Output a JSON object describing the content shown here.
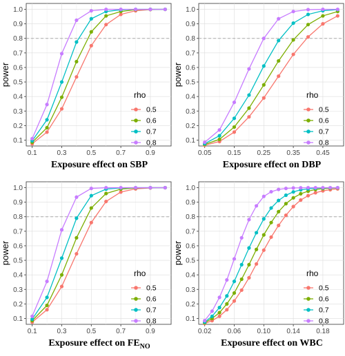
{
  "chart_data": [
    {
      "type": "line",
      "xlabel": "Exposure effect on SBP",
      "xlabel_sub": "",
      "ylabel": "power",
      "x": [
        0.1,
        0.2,
        0.3,
        0.4,
        0.5,
        0.6,
        0.7,
        0.8,
        0.9,
        1.0
      ],
      "xlim": [
        0.1,
        1.0
      ],
      "xticks": [
        0.1,
        0.3,
        0.5,
        0.7,
        0.9
      ],
      "xtick_labels": [
        "0.1",
        "0.3",
        "0.5",
        "0.7",
        "0.9"
      ],
      "ylim": [
        0.1,
        1.0
      ],
      "yticks": [
        0.1,
        0.2,
        0.3,
        0.4,
        0.5,
        0.6,
        0.7,
        0.8,
        0.9,
        1.0
      ],
      "ytick_labels": [
        "0.1",
        "0.2",
        "0.3",
        "0.4",
        "0.5",
        "0.6",
        "0.7",
        "0.8",
        "0.9",
        "1.0"
      ],
      "reference_line": 0.8,
      "legend_title": "rho",
      "legend_position": "right",
      "grid": true,
      "series": [
        {
          "name": "0.5",
          "color": "#F8766D",
          "values": [
            0.075,
            0.155,
            0.315,
            0.535,
            0.75,
            0.895,
            0.965,
            0.99,
            0.998,
            1.0
          ]
        },
        {
          "name": "0.6",
          "color": "#7CAE00",
          "values": [
            0.085,
            0.185,
            0.395,
            0.64,
            0.845,
            0.955,
            0.985,
            0.998,
            1.0,
            1.0
          ]
        },
        {
          "name": "0.7",
          "color": "#00BFC4",
          "values": [
            0.095,
            0.24,
            0.5,
            0.775,
            0.935,
            0.985,
            0.997,
            1.0,
            1.0,
            1.0
          ]
        },
        {
          "name": "0.8",
          "color": "#C77CFF",
          "values": [
            0.11,
            0.345,
            0.695,
            0.925,
            0.99,
            1.0,
            1.0,
            1.0,
            1.0,
            1.0
          ]
        }
      ]
    },
    {
      "type": "line",
      "xlabel": "Exposure effect on DBP",
      "xlabel_sub": "",
      "ylabel": "power",
      "x": [
        0.05,
        0.1,
        0.15,
        0.2,
        0.25,
        0.3,
        0.35,
        0.4,
        0.45,
        0.5
      ],
      "xlim": [
        0.05,
        0.5
      ],
      "xticks": [
        0.05,
        0.15,
        0.25,
        0.35,
        0.45
      ],
      "xtick_labels": [
        "0.05",
        "0.15",
        "0.25",
        "0.35",
        "0.45"
      ],
      "ylim": [
        0.1,
        1.0
      ],
      "yticks": [
        0.1,
        0.2,
        0.3,
        0.4,
        0.5,
        0.6,
        0.7,
        0.8,
        0.9,
        1.0
      ],
      "ytick_labels": [
        "0.1",
        "0.2",
        "0.3",
        "0.4",
        "0.5",
        "0.6",
        "0.7",
        "0.8",
        "0.9",
        "1.0"
      ],
      "reference_line": 0.8,
      "legend_title": "rho",
      "legend_position": "right",
      "grid": true,
      "series": [
        {
          "name": "0.5",
          "color": "#F8766D",
          "values": [
            0.065,
            0.09,
            0.155,
            0.26,
            0.39,
            0.54,
            0.69,
            0.81,
            0.9,
            0.955
          ]
        },
        {
          "name": "0.6",
          "color": "#7CAE00",
          "values": [
            0.07,
            0.105,
            0.19,
            0.32,
            0.48,
            0.645,
            0.79,
            0.895,
            0.955,
            0.985
          ]
        },
        {
          "name": "0.7",
          "color": "#00BFC4",
          "values": [
            0.075,
            0.13,
            0.25,
            0.41,
            0.61,
            0.785,
            0.905,
            0.965,
            0.99,
            0.998
          ]
        },
        {
          "name": "0.8",
          "color": "#C77CFF",
          "values": [
            0.085,
            0.17,
            0.36,
            0.59,
            0.8,
            0.935,
            0.985,
            0.998,
            1.0,
            1.0
          ]
        }
      ]
    },
    {
      "type": "line",
      "xlabel": "Exposure effect on FE",
      "xlabel_sub": "NO",
      "ylabel": "power",
      "x": [
        0.1,
        0.2,
        0.3,
        0.4,
        0.5,
        0.6,
        0.7,
        0.8,
        0.9,
        1.0
      ],
      "xlim": [
        0.1,
        1.0
      ],
      "xticks": [
        0.1,
        0.3,
        0.5,
        0.7,
        0.9
      ],
      "xtick_labels": [
        "0.1",
        "0.3",
        "0.5",
        "0.7",
        "0.9"
      ],
      "ylim": [
        0.1,
        1.0
      ],
      "yticks": [
        0.1,
        0.2,
        0.3,
        0.4,
        0.5,
        0.6,
        0.7,
        0.8,
        0.9,
        1.0
      ],
      "ytick_labels": [
        "0.1",
        "0.2",
        "0.3",
        "0.4",
        "0.5",
        "0.6",
        "0.7",
        "0.8",
        "0.9",
        "1.0"
      ],
      "reference_line": 0.8,
      "legend_title": "rho",
      "legend_position": "right",
      "grid": true,
      "series": [
        {
          "name": "0.5",
          "color": "#F8766D",
          "values": [
            0.075,
            0.16,
            0.32,
            0.545,
            0.76,
            0.905,
            0.97,
            0.992,
            0.998,
            1.0
          ]
        },
        {
          "name": "0.6",
          "color": "#7CAE00",
          "values": [
            0.085,
            0.19,
            0.4,
            0.655,
            0.86,
            0.96,
            0.99,
            0.998,
            1.0,
            1.0
          ]
        },
        {
          "name": "0.7",
          "color": "#00BFC4",
          "values": [
            0.095,
            0.245,
            0.515,
            0.79,
            0.945,
            0.99,
            0.998,
            1.0,
            1.0,
            1.0
          ]
        },
        {
          "name": "0.8",
          "color": "#C77CFF",
          "values": [
            0.115,
            0.355,
            0.71,
            0.935,
            0.995,
            1.0,
            1.0,
            1.0,
            1.0,
            1.0
          ]
        }
      ]
    },
    {
      "type": "line",
      "xlabel": "Exposure effect on WBC",
      "xlabel_sub": "",
      "ylabel": "power",
      "x": [
        0.02,
        0.03,
        0.04,
        0.05,
        0.06,
        0.07,
        0.08,
        0.09,
        0.1,
        0.11,
        0.12,
        0.13,
        0.14,
        0.15,
        0.16,
        0.17,
        0.18,
        0.19,
        0.2
      ],
      "xlim": [
        0.02,
        0.2
      ],
      "xticks": [
        0.02,
        0.06,
        0.1,
        0.14,
        0.18
      ],
      "xtick_labels": [
        "0.02",
        "0.06",
        "0.10",
        "0.14",
        "0.18"
      ],
      "ylim": [
        0.1,
        1.0
      ],
      "yticks": [
        0.1,
        0.2,
        0.3,
        0.4,
        0.5,
        0.6,
        0.7,
        0.8,
        0.9,
        1.0
      ],
      "ytick_labels": [
        "0.1",
        "0.2",
        "0.3",
        "0.4",
        "0.5",
        "0.6",
        "0.7",
        "0.8",
        "0.9",
        "1.0"
      ],
      "reference_line": 0.8,
      "legend_title": "rho",
      "legend_position": "right",
      "grid": true,
      "series": [
        {
          "name": "0.5",
          "color": "#F8766D",
          "values": [
            0.065,
            0.085,
            0.115,
            0.16,
            0.22,
            0.295,
            0.38,
            0.475,
            0.57,
            0.66,
            0.74,
            0.81,
            0.87,
            0.915,
            0.945,
            0.965,
            0.978,
            0.986,
            0.992
          ]
        },
        {
          "name": "0.6",
          "color": "#7CAE00",
          "values": [
            0.07,
            0.1,
            0.14,
            0.2,
            0.275,
            0.37,
            0.47,
            0.575,
            0.675,
            0.76,
            0.835,
            0.89,
            0.93,
            0.958,
            0.976,
            0.987,
            0.993,
            0.996,
            0.998
          ]
        },
        {
          "name": "0.7",
          "color": "#00BFC4",
          "values": [
            0.075,
            0.115,
            0.175,
            0.255,
            0.355,
            0.47,
            0.585,
            0.69,
            0.785,
            0.86,
            0.912,
            0.948,
            0.971,
            0.985,
            0.992,
            0.996,
            0.998,
            0.999,
            1.0
          ]
        },
        {
          "name": "0.8",
          "color": "#C77CFF",
          "values": [
            0.085,
            0.15,
            0.245,
            0.365,
            0.51,
            0.655,
            0.78,
            0.875,
            0.94,
            0.972,
            0.988,
            0.995,
            0.998,
            0.999,
            1.0,
            1.0,
            1.0,
            1.0,
            1.0
          ]
        }
      ]
    }
  ]
}
